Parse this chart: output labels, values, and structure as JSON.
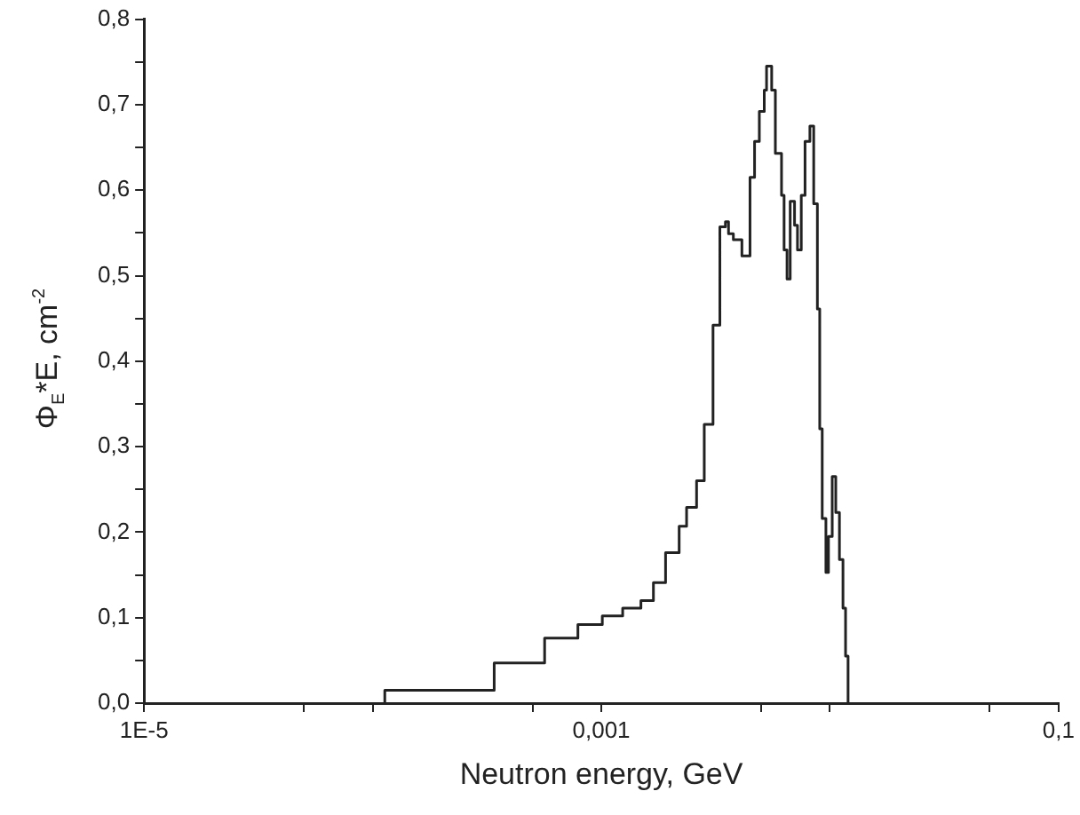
{
  "chart_data": {
    "type": "step",
    "xlabel": "Neutron energy, GeV",
    "ylabel": "Φ$_{E}$*E,  cm$^{-2}$",
    "log": "x",
    "grid": false,
    "legend": false,
    "marker": "none",
    "line_style": "solid",
    "xlim": [
      1e-05,
      0.1
    ],
    "xticks": [
      {
        "value": 1e-05,
        "label": "1E-5"
      },
      {
        "value": 5e-05,
        "label": null
      },
      {
        "value": 0.0001,
        "label": null
      },
      {
        "value": 0.0005,
        "label": null
      },
      {
        "value": 0.001,
        "label": "0,001"
      },
      {
        "value": 0.005,
        "label": null
      },
      {
        "value": 0.01,
        "label": null
      },
      {
        "value": 0.05,
        "label": null
      },
      {
        "value": 0.1,
        "label": "0,1"
      }
    ],
    "ylim": [
      0,
      0.8
    ],
    "yticks": [
      {
        "value": 0,
        "label": "0,0"
      },
      {
        "value": 0.05,
        "label": null
      },
      {
        "value": 0.1,
        "label": "0,1"
      },
      {
        "value": 0.15,
        "label": null
      },
      {
        "value": 0.2,
        "label": "0,2"
      },
      {
        "value": 0.25,
        "label": null
      },
      {
        "value": 0.3,
        "label": "0,3"
      },
      {
        "value": 0.35,
        "label": null
      },
      {
        "value": 0.4,
        "label": "0,4"
      },
      {
        "value": 0.45,
        "label": null
      },
      {
        "value": 0.5,
        "label": "0,5"
      },
      {
        "value": 0.55,
        "label": null
      },
      {
        "value": 0.6,
        "label": "0,6"
      },
      {
        "value": 0.65,
        "label": null
      },
      {
        "value": 0.7,
        "label": "0,7"
      },
      {
        "value": 0.75,
        "label": null
      },
      {
        "value": 0.8,
        "label": "0,8"
      }
    ],
    "series": [
      {
        "color": "#222222",
        "x": [
          0.000113,
          0.000113,
          0.00034,
          0.000565,
          0.00079,
          0.00101,
          0.00124,
          0.00149,
          0.00169,
          0.00191,
          0.00219,
          0.00236,
          0.00261,
          0.00282,
          0.00308,
          0.0033,
          0.00349,
          0.0036,
          0.00378,
          0.00412,
          0.00447,
          0.00468,
          0.00491,
          0.00516,
          0.00528,
          0.00556,
          0.00577,
          0.00614,
          0.0063,
          0.00649,
          0.0067,
          0.007,
          0.00721,
          0.00749,
          0.00778,
          0.00817,
          0.00849,
          0.00881,
          0.00902,
          0.00925,
          0.0096,
          0.00985,
          0.01023,
          0.0106,
          0.011,
          0.0114,
          0.0117,
          0.012
        ],
        "values": [
          0,
          0.015,
          0.047,
          0.076,
          0.092,
          0.102,
          0.111,
          0.12,
          0.141,
          0.176,
          0.207,
          0.229,
          0.26,
          0.326,
          0.442,
          0.557,
          0.563,
          0.549,
          0.542,
          0.523,
          0.615,
          0.657,
          0.692,
          0.717,
          0.745,
          0.717,
          0.643,
          0.594,
          0.53,
          0.496,
          0.587,
          0.559,
          0.53,
          0.594,
          0.657,
          0.675,
          0.584,
          0.461,
          0.321,
          0.216,
          0.153,
          0.195,
          0.265,
          0.223,
          0.168,
          0.111,
          0.055,
          0
        ]
      }
    ]
  }
}
